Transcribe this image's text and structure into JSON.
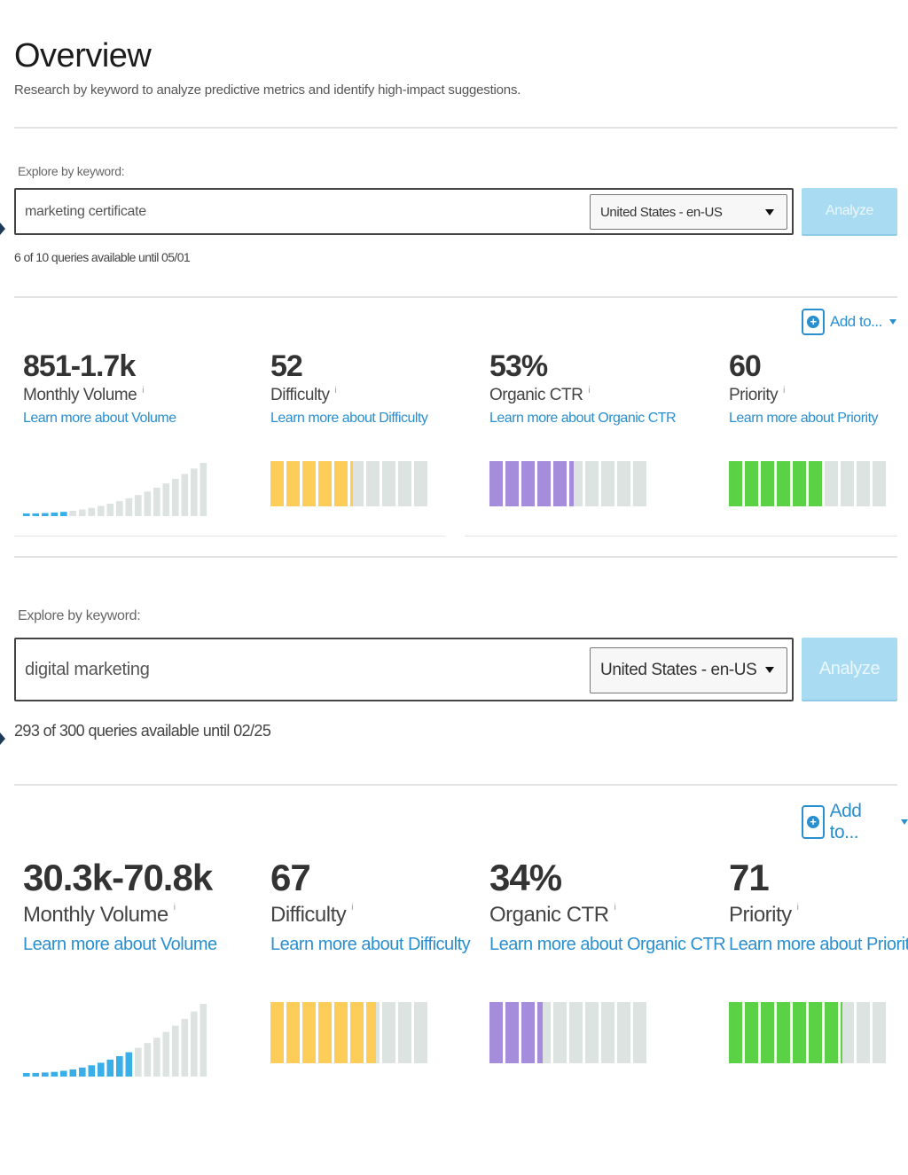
{
  "header": {
    "title": "Overview",
    "subtitle": "Research by keyword to analyze predictive metrics and identify high-impact suggestions."
  },
  "panels": [
    {
      "explore_label": "Explore by keyword:",
      "keyword_value": "marketing certificate",
      "locale": "United States - en-US",
      "analyze_label": "Analyze",
      "quota_text": "6 of 10 queries available until 05/01",
      "add_to_label": "Add to...",
      "metrics": {
        "volume": {
          "value": "851-1.7k",
          "label": "Monthly Volume",
          "info": "i",
          "learn_more": "Learn more about Volume",
          "filled_bars": 5,
          "total_bars": 20
        },
        "difficulty": {
          "value": "52",
          "label": "Difficulty",
          "info": "i",
          "learn_more": "Learn more about Difficulty",
          "score": 52
        },
        "ctr": {
          "value": "53%",
          "label": "Organic CTR",
          "info": "i",
          "learn_more": "Learn more about Organic CTR",
          "score": 53
        },
        "priority": {
          "value": "60",
          "label": "Priority",
          "info": "i",
          "learn_more": "Learn more about Priority",
          "score": 60
        }
      }
    },
    {
      "explore_label": "Explore by keyword:",
      "keyword_value": "digital marketing",
      "locale": "United States - en-US",
      "analyze_label": "Analyze",
      "quota_text": "293 of 300 queries available until 02/25",
      "add_to_label": "Add to...",
      "metrics": {
        "volume": {
          "value": "30.3k-70.8k",
          "label": "Monthly Volume",
          "info": "i",
          "learn_more": "Learn more about Volume",
          "filled_bars": 12,
          "total_bars": 20
        },
        "difficulty": {
          "value": "67",
          "label": "Difficulty",
          "info": "i",
          "learn_more": "Learn more about Difficulty",
          "score": 67
        },
        "ctr": {
          "value": "34%",
          "label": "Organic CTR",
          "info": "i",
          "learn_more": "Learn more about Organic CTR",
          "score": 34
        },
        "priority": {
          "value": "71",
          "label": "Priority",
          "info": "i",
          "learn_more": "Learn more about Priority",
          "score": 71
        }
      }
    }
  ],
  "colors": {
    "volume": "#3aaee6",
    "difficulty": "#fdcd5a",
    "ctr": "#a58ddb",
    "priority": "#5bd245",
    "empty": "#dde3e1",
    "link": "#2a8fcf"
  },
  "icons": {
    "add": "plus-circle-icon",
    "dropdown": "caret-down-icon",
    "info": "info-icon"
  }
}
